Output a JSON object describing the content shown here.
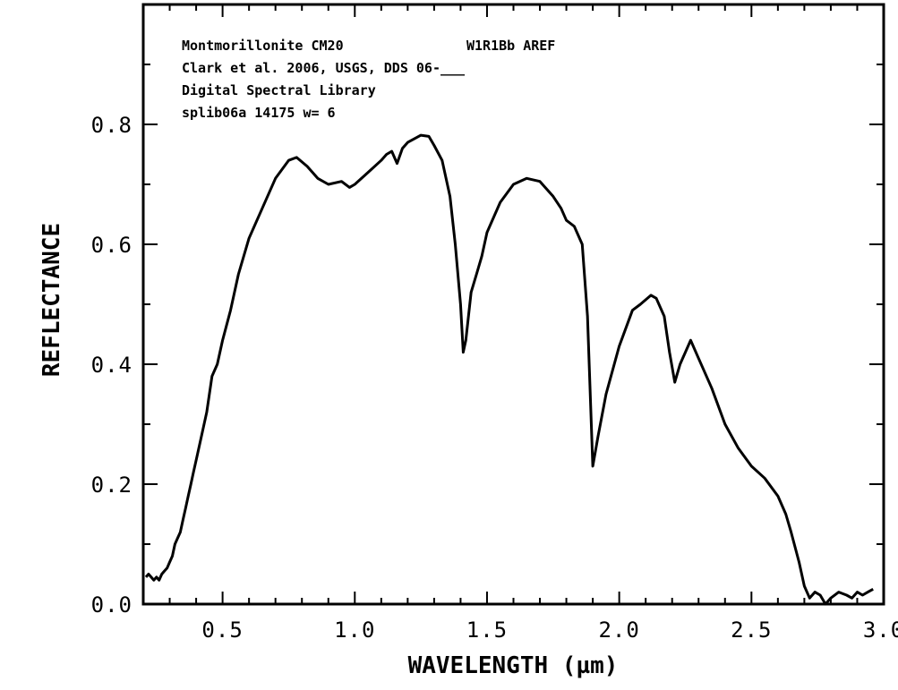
{
  "chart_data": {
    "type": "line",
    "title": "",
    "xlabel": "WAVELENGTH (µm)",
    "ylabel": "REFLECTANCE",
    "xlim": [
      0.2,
      3.0
    ],
    "ylim": [
      0.0,
      1.0
    ],
    "xticks": [
      0.5,
      1.0,
      1.5,
      2.0,
      2.5,
      3.0
    ],
    "xtick_labels": [
      "0.5",
      "1.0",
      "1.5",
      "2.0",
      "2.5",
      "3.0"
    ],
    "yticks": [
      0.0,
      0.2,
      0.4,
      0.6,
      0.8
    ],
    "ytick_labels": [
      "0.0",
      "0.2",
      "0.4",
      "0.6",
      "0.8"
    ],
    "grid": false,
    "legend": "none",
    "line_color": "#000000",
    "annotations": [
      "Montmorillonite CM20",
      "W1R1Bb AREF",
      "Clark et al. 2006, USGS, DDS 06-___",
      "Digital Spectral Library",
      "splib06a 14175 w= 6"
    ],
    "series": [
      {
        "x": [
          0.21,
          0.22,
          0.23,
          0.24,
          0.25,
          0.26,
          0.27,
          0.28,
          0.29,
          0.3,
          0.31,
          0.32,
          0.33,
          0.34,
          0.35,
          0.36,
          0.37,
          0.38,
          0.39,
          0.4,
          0.42,
          0.44,
          0.46,
          0.48,
          0.5,
          0.53,
          0.56,
          0.6,
          0.65,
          0.7,
          0.75,
          0.78,
          0.82,
          0.86,
          0.9,
          0.95,
          0.98,
          1.0,
          1.05,
          1.1,
          1.12,
          1.14,
          1.16,
          1.18,
          1.2,
          1.25,
          1.28,
          1.3,
          1.33,
          1.36,
          1.38,
          1.4,
          1.41,
          1.42,
          1.44,
          1.46,
          1.48,
          1.5,
          1.55,
          1.6,
          1.65,
          1.7,
          1.75,
          1.78,
          1.8,
          1.83,
          1.86,
          1.88,
          1.9,
          1.92,
          1.95,
          2.0,
          2.05,
          2.08,
          2.12,
          2.14,
          2.17,
          2.19,
          2.21,
          2.23,
          2.25,
          2.27,
          2.3,
          2.35,
          2.4,
          2.45,
          2.5,
          2.55,
          2.6,
          2.63,
          2.65,
          2.68,
          2.7,
          2.72,
          2.74,
          2.76,
          2.78,
          2.8,
          2.83,
          2.86,
          2.88,
          2.9,
          2.92,
          2.94,
          2.96
        ],
        "y": [
          0.045,
          0.05,
          0.045,
          0.04,
          0.045,
          0.04,
          0.05,
          0.055,
          0.06,
          0.07,
          0.08,
          0.1,
          0.11,
          0.12,
          0.14,
          0.16,
          0.18,
          0.2,
          0.22,
          0.24,
          0.28,
          0.32,
          0.38,
          0.4,
          0.44,
          0.49,
          0.55,
          0.61,
          0.66,
          0.71,
          0.74,
          0.745,
          0.73,
          0.71,
          0.7,
          0.705,
          0.695,
          0.7,
          0.72,
          0.74,
          0.75,
          0.755,
          0.735,
          0.76,
          0.77,
          0.782,
          0.78,
          0.765,
          0.74,
          0.68,
          0.6,
          0.5,
          0.42,
          0.44,
          0.52,
          0.55,
          0.58,
          0.62,
          0.67,
          0.7,
          0.71,
          0.705,
          0.68,
          0.66,
          0.64,
          0.63,
          0.6,
          0.48,
          0.23,
          0.28,
          0.35,
          0.43,
          0.49,
          0.5,
          0.515,
          0.51,
          0.48,
          0.42,
          0.37,
          0.4,
          0.42,
          0.44,
          0.41,
          0.36,
          0.3,
          0.26,
          0.23,
          0.21,
          0.18,
          0.15,
          0.12,
          0.07,
          0.03,
          0.01,
          0.02,
          0.015,
          0.0,
          0.01,
          0.02,
          0.015,
          0.01,
          0.02,
          0.015,
          0.02,
          0.025
        ]
      }
    ]
  }
}
